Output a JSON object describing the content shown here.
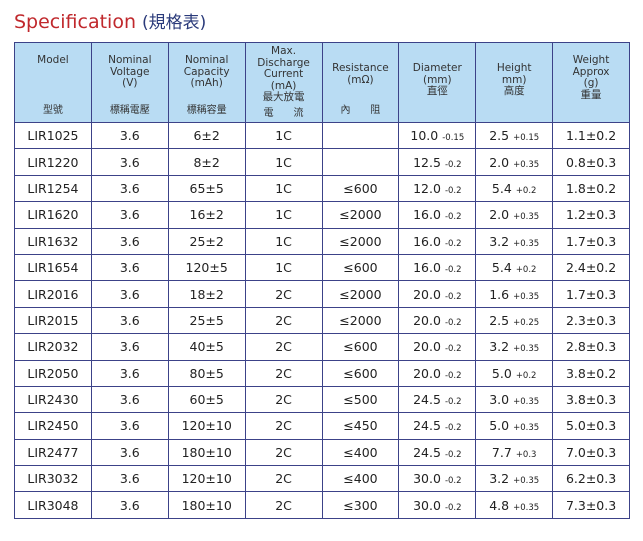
{
  "title": {
    "en": "Specification",
    "zh": "(規格表)"
  },
  "colors": {
    "title": "#c0282c",
    "header_bg": "#b9dcf3",
    "border": "#3c4288"
  },
  "columns": [
    {
      "en": "Model",
      "zh": "型號"
    },
    {
      "en": "Nominal\nVoltage\n(V)",
      "zh": "標稱電壓"
    },
    {
      "en": "Nominal\nCapacity\n(mAh)",
      "zh": "標稱容量"
    },
    {
      "en": "Max.\nDischarge\nCurrent\n(mA)\n最大放電",
      "zh": "電　　流"
    },
    {
      "en": "Resistance\n(mΩ)",
      "zh": "內　　阻"
    },
    {
      "en": "Diameter\n(mm)\n直徑",
      "zh": ""
    },
    {
      "en": "Height\nmm)\n高度",
      "zh": ""
    },
    {
      "en": "Weight\nApprox\n(g)\n重量",
      "zh": ""
    }
  ],
  "rows": [
    [
      "LIR1025",
      "3.6",
      "6±2",
      "1C",
      "",
      [
        "10.0",
        "-0.15"
      ],
      [
        "2.5",
        "+0.15"
      ],
      "1.1±0.2"
    ],
    [
      "LIR1220",
      "3.6",
      "8±2",
      "1C",
      "",
      [
        "12.5",
        "-0.2"
      ],
      [
        "2.0",
        "+0.35"
      ],
      "0.8±0.3"
    ],
    [
      "LIR1254",
      "3.6",
      "65±5",
      "1C",
      "≤600",
      [
        "12.0",
        "-0.2"
      ],
      [
        "5.4",
        "+0.2"
      ],
      "1.8±0.2"
    ],
    [
      "LIR1620",
      "3.6",
      "16±2",
      "1C",
      "≤2000",
      [
        "16.0",
        "-0.2"
      ],
      [
        "2.0",
        "+0.35"
      ],
      "1.2±0.3"
    ],
    [
      "LIR1632",
      "3.6",
      "25±2",
      "1C",
      "≤2000",
      [
        "16.0",
        "-0.2"
      ],
      [
        "3.2",
        "+0.35"
      ],
      "1.7±0.3"
    ],
    [
      "LIR1654",
      "3.6",
      "120±5",
      "1C",
      "≤600",
      [
        "16.0",
        "-0.2"
      ],
      [
        "5.4",
        "+0.2"
      ],
      "2.4±0.2"
    ],
    [
      "LIR2016",
      "3.6",
      "18±2",
      "2C",
      "≤2000",
      [
        "20.0",
        "-0.2"
      ],
      [
        "1.6",
        "+0.35"
      ],
      "1.7±0.3"
    ],
    [
      "LIR2015",
      "3.6",
      "25±5",
      "2C",
      "≤2000",
      [
        "20.0",
        "-0.2"
      ],
      [
        "2.5",
        "+0.25"
      ],
      "2.3±0.3"
    ],
    [
      "LIR2032",
      "3.6",
      "40±5",
      "2C",
      "≤600",
      [
        "20.0",
        "-0.2"
      ],
      [
        "3.2",
        "+0.35"
      ],
      "2.8±0.3"
    ],
    [
      "LIR2050",
      "3.6",
      "80±5",
      "2C",
      "≤600",
      [
        "20.0",
        "-0.2"
      ],
      [
        "5.0",
        "+0.2"
      ],
      "3.8±0.2"
    ],
    [
      "LIR2430",
      "3.6",
      "60±5",
      "2C",
      "≤500",
      [
        "24.5",
        "-0.2"
      ],
      [
        "3.0",
        "+0.35"
      ],
      "3.8±0.3"
    ],
    [
      "LIR2450",
      "3.6",
      "120±10",
      "2C",
      "≤450",
      [
        "24.5",
        "-0.2"
      ],
      [
        "5.0",
        "+0.35"
      ],
      "5.0±0.3"
    ],
    [
      "LIR2477",
      "3.6",
      "180±10",
      "2C",
      "≤400",
      [
        "24.5",
        "-0.2"
      ],
      [
        "7.7",
        "+0.3"
      ],
      "7.0±0.3"
    ],
    [
      "LIR3032",
      "3.6",
      "120±10",
      "2C",
      "≤400",
      [
        "30.0",
        "-0.2"
      ],
      [
        "3.2",
        "+0.35"
      ],
      "6.2±0.3"
    ],
    [
      "LIR3048",
      "3.6",
      "180±10",
      "2C",
      "≤300",
      [
        "30.0",
        "-0.2"
      ],
      [
        "4.8",
        "+0.35"
      ],
      "7.3±0.3"
    ]
  ]
}
